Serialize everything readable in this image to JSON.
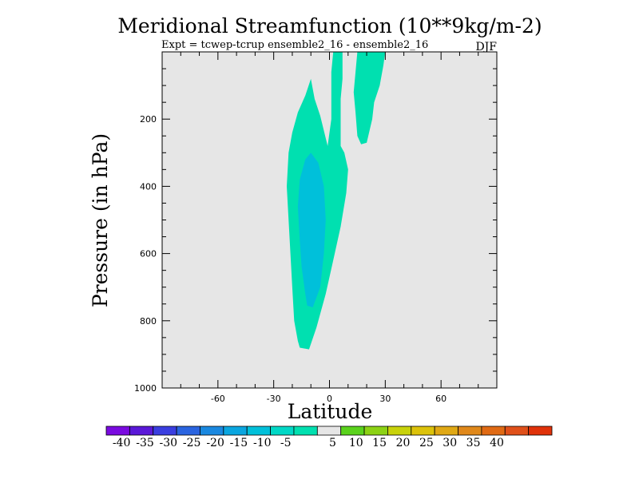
{
  "chart_data": {
    "type": "contour",
    "title": "Meridional Streamfunction (10**9kg/m-2)",
    "subtitle": "Expt = tcwep-tcrup ensemble2_16 - ensemble2_16",
    "season": "DJF",
    "xlabel": "Latitude",
    "ylabel": "Pressure (in hPa)",
    "xlim": [
      -90,
      90
    ],
    "ylim": [
      1000,
      0
    ],
    "x_ticks": [
      -60,
      -30,
      0,
      30,
      60
    ],
    "x_tick_labels": [
      "-60",
      "-30",
      "0",
      "30",
      "60"
    ],
    "y_ticks": [
      200,
      400,
      600,
      800,
      1000
    ],
    "y_tick_labels": [
      "200",
      "400",
      "600",
      "800",
      "1000"
    ],
    "background_color": "#e6e6e6",
    "colorbar": {
      "tick_labels": [
        "-40",
        "-35",
        "-30",
        "-25",
        "-20",
        "-15",
        "-10",
        "-5",
        "5",
        "10",
        "15",
        "20",
        "25",
        "30",
        "35",
        "40"
      ],
      "colors": [
        "#7a0ae0",
        "#5a18d8",
        "#3a3ee0",
        "#2a64e0",
        "#1a88e0",
        "#0aa6e0",
        "#00c0da",
        "#00d8c6",
        "#00e0b0",
        "#e6e6e6",
        "#5ad21c",
        "#8cd214",
        "#c8d20a",
        "#dcc20a",
        "#e0a814",
        "#e0881a",
        "#e06a14",
        "#e0501a",
        "#e0320a"
      ]
    },
    "regions": [
      {
        "name": "negative-5-to-10-lobe",
        "level": "-10 to -5",
        "color": "#00e0b0",
        "outline": [
          [
            -16,
            880
          ],
          [
            -11,
            885
          ],
          [
            -7,
            820
          ],
          [
            -2,
            720
          ],
          [
            2,
            620
          ],
          [
            6,
            520
          ],
          [
            9,
            420
          ],
          [
            10,
            350
          ],
          [
            8,
            300
          ],
          [
            6,
            280
          ],
          [
            6,
            200
          ],
          [
            6,
            140
          ],
          [
            7,
            80
          ],
          [
            7,
            0
          ],
          [
            2,
            0
          ],
          [
            1,
            60
          ],
          [
            1,
            200
          ],
          [
            -1,
            280
          ],
          [
            -5,
            190
          ],
          [
            -8,
            140
          ],
          [
            -10,
            80
          ],
          [
            -13,
            130
          ],
          [
            -17,
            180
          ],
          [
            -20,
            240
          ],
          [
            -22,
            300
          ],
          [
            -23,
            400
          ],
          [
            -22,
            500
          ],
          [
            -21,
            600
          ],
          [
            -20,
            700
          ],
          [
            -19,
            800
          ],
          [
            -17,
            860
          ]
        ]
      },
      {
        "name": "negative-10-to-15-core",
        "level": "-15 to -10",
        "color": "#00c0da",
        "outline": [
          [
            -9,
            760
          ],
          [
            -5,
            700
          ],
          [
            -3,
            600
          ],
          [
            -2,
            500
          ],
          [
            -3,
            400
          ],
          [
            -6,
            330
          ],
          [
            -10,
            300
          ],
          [
            -13,
            320
          ],
          [
            -16,
            380
          ],
          [
            -17,
            460
          ],
          [
            -16,
            560
          ],
          [
            -15,
            640
          ],
          [
            -13,
            720
          ],
          [
            -12,
            755
          ]
        ]
      },
      {
        "name": "negative-5-to-10-upper-lobe",
        "level": "-10 to -5",
        "color": "#00e0b0",
        "outline": [
          [
            17,
            275
          ],
          [
            20,
            270
          ],
          [
            23,
            200
          ],
          [
            24,
            150
          ],
          [
            27,
            100
          ],
          [
            29,
            40
          ],
          [
            30,
            0
          ],
          [
            15,
            0
          ],
          [
            14,
            60
          ],
          [
            13,
            120
          ],
          [
            14,
            180
          ],
          [
            15,
            250
          ]
        ]
      }
    ]
  }
}
